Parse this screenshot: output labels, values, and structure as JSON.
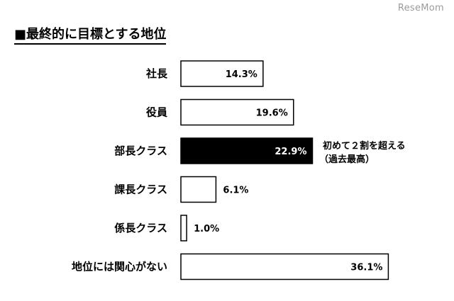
{
  "title": "■最終的に目標とする地位",
  "watermark": "ReseMom",
  "chart_data": {
    "type": "bar",
    "orientation": "horizontal",
    "title": "■最終的に目標とする地位",
    "categories": [
      "社長",
      "役員",
      "部長クラス",
      "課長クラス",
      "係長クラス",
      "地位には関心がない"
    ],
    "values": [
      14.3,
      19.6,
      22.9,
      6.1,
      1.0,
      36.1
    ],
    "value_labels": [
      "14.3%",
      "19.6%",
      "22.9%",
      "6.1%",
      "1.0%",
      "36.1%"
    ],
    "unit": "%",
    "highlight_index": 2,
    "colors": {
      "bar_fill": "#ffffff",
      "bar_stroke": "#000000",
      "highlight_fill": "#000000",
      "highlight_text": "#ffffff",
      "text": "#000000"
    },
    "annotation": {
      "category_index": 2,
      "lines": [
        "初めて２割を超える",
        "（過去最高）"
      ]
    },
    "grid": false,
    "legend": "none"
  }
}
